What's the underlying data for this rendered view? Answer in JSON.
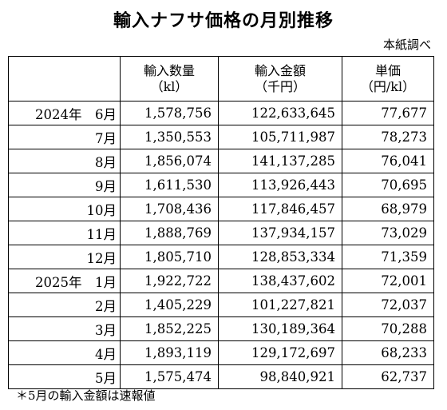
{
  "title": "輸入ナフサ価格の月別推移",
  "source": "本紙調べ",
  "table": {
    "headers": [
      {
        "line1": "",
        "line2": ""
      },
      {
        "line1": "輸入数量",
        "line2": "（kl）"
      },
      {
        "line1": "輸入金額",
        "line2": "（千円）"
      },
      {
        "line1": "単価",
        "line2": "（円/kl）"
      }
    ],
    "rows": [
      {
        "period": "2024年　6月",
        "quantity": "1,578,756",
        "amount": "122,633,645",
        "unit_price": "77,677"
      },
      {
        "period": "7月",
        "quantity": "1,350,553",
        "amount": "105,711,987",
        "unit_price": "78,273"
      },
      {
        "period": "8月",
        "quantity": "1,856,074",
        "amount": "141,137,285",
        "unit_price": "76,041"
      },
      {
        "period": "9月",
        "quantity": "1,611,530",
        "amount": "113,926,443",
        "unit_price": "70,695"
      },
      {
        "period": "10月",
        "quantity": "1,708,436",
        "amount": "117,846,457",
        "unit_price": "68,979"
      },
      {
        "period": "11月",
        "quantity": "1,888,769",
        "amount": "137,934,157",
        "unit_price": "73,029"
      },
      {
        "period": "12月",
        "quantity": "1,805,710",
        "amount": "128,853,334",
        "unit_price": "71,359"
      },
      {
        "period": "2025年　1月",
        "quantity": "1,922,722",
        "amount": "138,437,602",
        "unit_price": "72,001"
      },
      {
        "period": "2月",
        "quantity": "1,405,229",
        "amount": "101,227,821",
        "unit_price": "72,037"
      },
      {
        "period": "3月",
        "quantity": "1,852,225",
        "amount": "130,189,364",
        "unit_price": "70,288"
      },
      {
        "period": "4月",
        "quantity": "1,893,119",
        "amount": "129,172,697",
        "unit_price": "68,233"
      },
      {
        "period": "5月",
        "quantity": "1,575,474",
        "amount": "98,840,921",
        "unit_price": "62,737"
      }
    ]
  },
  "footnote": "＊5月の輸入金額は速報値"
}
